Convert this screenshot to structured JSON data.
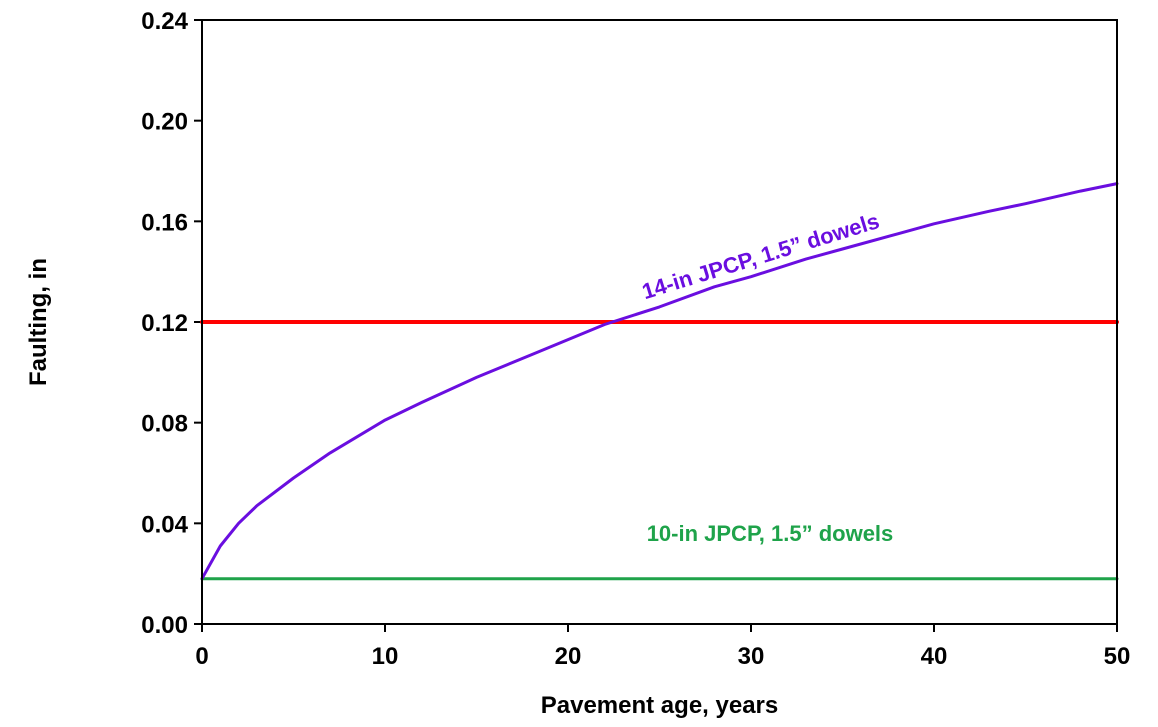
{
  "chart_data": {
    "type": "line",
    "title": "",
    "xlabel": "Pavement age, years",
    "ylabel": "Faulting, in",
    "xlim": [
      0,
      50
    ],
    "ylim": [
      0,
      0.24
    ],
    "x_ticks": [
      0,
      10,
      20,
      30,
      40,
      50
    ],
    "x_tick_labels": [
      "0",
      "10",
      "20",
      "30",
      "40",
      "50"
    ],
    "y_ticks": [
      0,
      0.04,
      0.08,
      0.12,
      0.16,
      0.2,
      0.24
    ],
    "y_tick_labels": [
      "0.00",
      "0.04",
      "0.08",
      "0.12",
      "0.16",
      "0.20",
      "0.24"
    ],
    "grid": false,
    "legend": "none",
    "series": [
      {
        "name": "14-in JPCP, 1.5” dowels",
        "color": "#6a0ee0",
        "x": [
          0,
          1,
          2,
          3,
          5,
          7,
          10,
          12,
          15,
          18,
          20,
          22,
          25,
          28,
          30,
          33,
          35,
          38,
          40,
          43,
          45,
          48,
          50
        ],
        "values": [
          0.018,
          0.031,
          0.04,
          0.047,
          0.058,
          0.068,
          0.081,
          0.088,
          0.098,
          0.107,
          0.113,
          0.119,
          0.126,
          0.134,
          0.138,
          0.145,
          0.149,
          0.155,
          0.159,
          0.164,
          0.167,
          0.172,
          0.175
        ]
      },
      {
        "name": "",
        "color": "#ff0000",
        "x": [
          0,
          50
        ],
        "values": [
          0.12,
          0.12
        ]
      },
      {
        "name": "10-in JPCP, 1.5” dowels",
        "color": "#1fa34a",
        "x": [
          0,
          50
        ],
        "values": [
          0.018,
          0.018
        ]
      }
    ]
  }
}
